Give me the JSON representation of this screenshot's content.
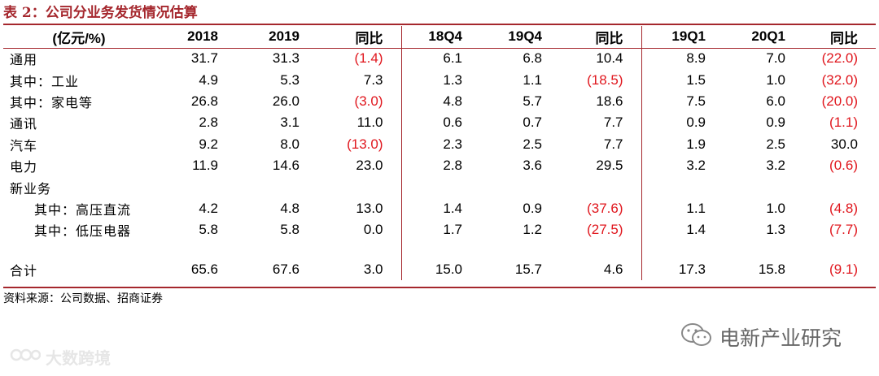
{
  "title": "表 2：公司分业务发货情况估算",
  "table": {
    "headers": [
      "(亿元/%)",
      "2018",
      "2019",
      "同比",
      "18Q4",
      "19Q4",
      "同比",
      "19Q1",
      "20Q1",
      "同比"
    ],
    "rows": [
      {
        "label": "通用",
        "indent": false,
        "cells": [
          "31.7",
          "31.3",
          "(1.4)",
          "6.1",
          "6.8",
          "10.4",
          "8.9",
          "7.0",
          "(22.0)"
        ]
      },
      {
        "label": "其中：工业",
        "indent": false,
        "cells": [
          "4.9",
          "5.3",
          "7.3",
          "1.3",
          "1.1",
          "(18.5)",
          "1.5",
          "1.0",
          "(32.0)"
        ]
      },
      {
        "label": "其中：家电等",
        "indent": false,
        "cells": [
          "26.8",
          "26.0",
          "(3.0)",
          "4.8",
          "5.7",
          "18.6",
          "7.5",
          "6.0",
          "(20.0)"
        ]
      },
      {
        "label": "通讯",
        "indent": false,
        "cells": [
          "2.8",
          "3.1",
          "11.0",
          "0.6",
          "0.7",
          "7.7",
          "0.9",
          "0.9",
          "(1.1)"
        ]
      },
      {
        "label": "汽车",
        "indent": false,
        "cells": [
          "9.2",
          "8.0",
          "(13.0)",
          "2.3",
          "2.5",
          "7.7",
          "1.9",
          "2.5",
          "30.0"
        ]
      },
      {
        "label": "电力",
        "indent": false,
        "cells": [
          "11.9",
          "14.6",
          "23.0",
          "2.8",
          "3.6",
          "29.5",
          "3.2",
          "3.2",
          "(0.6)"
        ]
      },
      {
        "label": "新业务",
        "indent": false,
        "cells": [
          "",
          "",
          "",
          "",
          "",
          "",
          "",
          "",
          ""
        ]
      },
      {
        "label": "其中：高压直流",
        "indent": true,
        "cells": [
          "4.2",
          "4.8",
          "13.0",
          "1.4",
          "0.9",
          "(37.6)",
          "1.1",
          "1.0",
          "(4.8)"
        ]
      },
      {
        "label": "其中：低压电器",
        "indent": true,
        "cells": [
          "5.8",
          "5.8",
          "0.0",
          "1.7",
          "1.2",
          "(27.5)",
          "1.4",
          "1.3",
          "(7.7)"
        ]
      },
      {
        "label": "合计",
        "indent": false,
        "cells": [
          "65.6",
          "67.6",
          "3.0",
          "15.0",
          "15.7",
          "4.6",
          "17.3",
          "15.8",
          "(9.1)"
        ]
      }
    ]
  },
  "source": "资料来源：公司数据、招商证券",
  "wechat_label": "电新产业研究",
  "watermark_label": "大数跨境",
  "colors": {
    "accent": "#a5272d",
    "negative": "#e0161d"
  }
}
